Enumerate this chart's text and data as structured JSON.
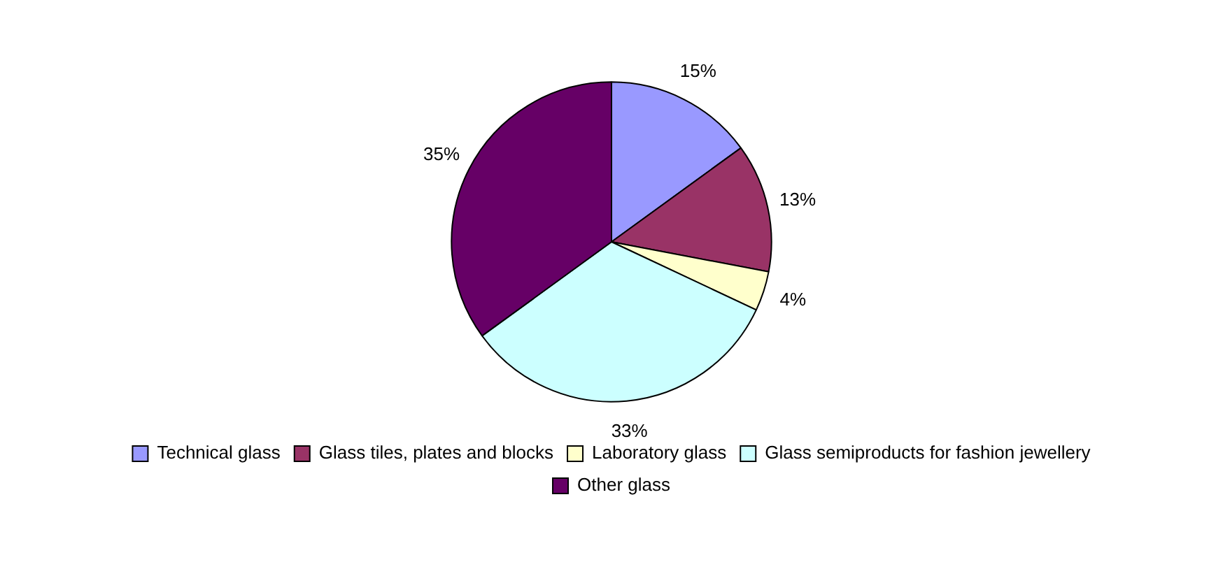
{
  "chart_data": {
    "type": "pie",
    "categories": [
      "Technical glass",
      "Glass tiles, plates and blocks",
      "Laboratory glass",
      "Glass semiproducts for fashion jewellery",
      "Other glass"
    ],
    "values": [
      15,
      13,
      4,
      33,
      35
    ],
    "value_labels": [
      "15%",
      "13%",
      "4%",
      "33%",
      "35%"
    ],
    "colors": [
      "#9999ff",
      "#993366",
      "#ffffcc",
      "#ccffff",
      "#660066"
    ],
    "legend": "bottom"
  }
}
